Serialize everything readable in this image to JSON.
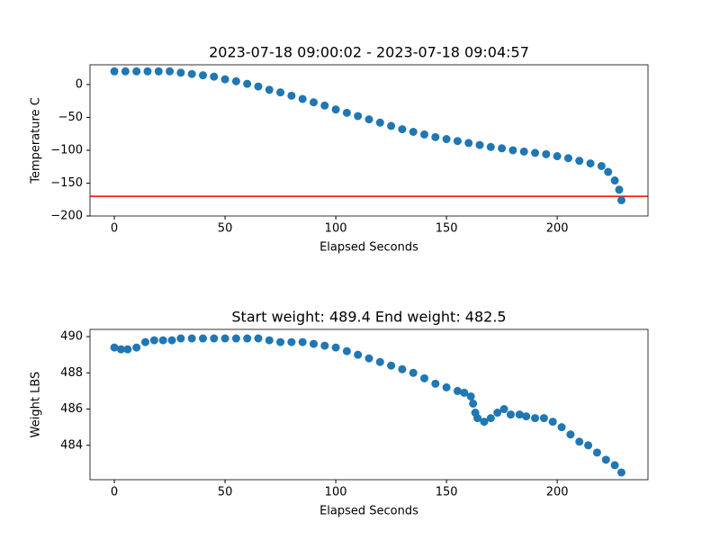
{
  "chart_data": [
    {
      "type": "scatter",
      "title": "2023-07-18 09:00:02 - 2023-07-18 09:04:57",
      "xlabel": "Elapsed Seconds",
      "ylabel": "Temperature C",
      "color": "#1f77b4",
      "x": [
        0,
        5,
        10,
        15,
        20,
        25,
        30,
        35,
        40,
        45,
        50,
        55,
        60,
        65,
        70,
        75,
        80,
        85,
        90,
        95,
        100,
        105,
        110,
        115,
        120,
        125,
        130,
        135,
        140,
        145,
        150,
        155,
        160,
        165,
        170,
        175,
        180,
        185,
        190,
        195,
        200,
        205,
        210,
        215,
        220,
        223,
        226,
        228,
        229
      ],
      "values": [
        20,
        20,
        20,
        20,
        20,
        20,
        18,
        16,
        14,
        12,
        8,
        5,
        1,
        -3,
        -8,
        -12,
        -17,
        -22,
        -27,
        -32,
        -38,
        -43,
        -48,
        -53,
        -58,
        -63,
        -68,
        -72,
        -76,
        -80,
        -83,
        -86,
        -89,
        -92,
        -95,
        -97,
        -100,
        -102,
        -104,
        -106,
        -109,
        -112,
        -116,
        -120,
        -124,
        -133,
        -146,
        -160,
        -176
      ],
      "hline": {
        "value": -170,
        "color": "#ff0000"
      },
      "xlim": [
        -11,
        241
      ],
      "ylim": [
        -200,
        30
      ],
      "xticks": [
        0,
        50,
        100,
        150,
        200
      ],
      "yticks": [
        {
          "value": -200,
          "label": "−200"
        },
        {
          "value": -150,
          "label": "−150"
        },
        {
          "value": -100,
          "label": "−100"
        },
        {
          "value": -50,
          "label": "−50"
        },
        0
      ]
    },
    {
      "type": "scatter",
      "title": "Start weight: 489.4 End weight: 482.5",
      "xlabel": "Elapsed Seconds",
      "ylabel": "Weight LBS",
      "color": "#1f77b4",
      "x": [
        0,
        3,
        6,
        10,
        14,
        18,
        22,
        26,
        30,
        35,
        40,
        45,
        50,
        55,
        60,
        65,
        70,
        75,
        80,
        85,
        90,
        95,
        100,
        105,
        110,
        115,
        120,
        125,
        130,
        135,
        140,
        145,
        150,
        155,
        158,
        161,
        162,
        163,
        164,
        167,
        170,
        173,
        176,
        179,
        183,
        186,
        190,
        194,
        198,
        202,
        206,
        210,
        214,
        218,
        222,
        226,
        229
      ],
      "values": [
        489.4,
        489.3,
        489.3,
        489.4,
        489.7,
        489.8,
        489.8,
        489.8,
        489.9,
        489.9,
        489.9,
        489.9,
        489.9,
        489.9,
        489.9,
        489.9,
        489.8,
        489.7,
        489.7,
        489.7,
        489.6,
        489.5,
        489.4,
        489.2,
        489.0,
        488.8,
        488.6,
        488.4,
        488.2,
        488.0,
        487.7,
        487.4,
        487.2,
        487.0,
        486.9,
        486.7,
        486.3,
        485.8,
        485.5,
        485.3,
        485.5,
        485.8,
        486.0,
        485.7,
        485.7,
        485.6,
        485.5,
        485.5,
        485.3,
        485.0,
        484.6,
        484.2,
        484.0,
        483.6,
        483.2,
        482.9,
        482.5
      ],
      "xlim": [
        -11,
        241
      ],
      "ylim": [
        482.1,
        490.4
      ],
      "xticks": [
        0,
        50,
        100,
        150,
        200
      ],
      "yticks": [
        484,
        486,
        488,
        490
      ]
    }
  ]
}
